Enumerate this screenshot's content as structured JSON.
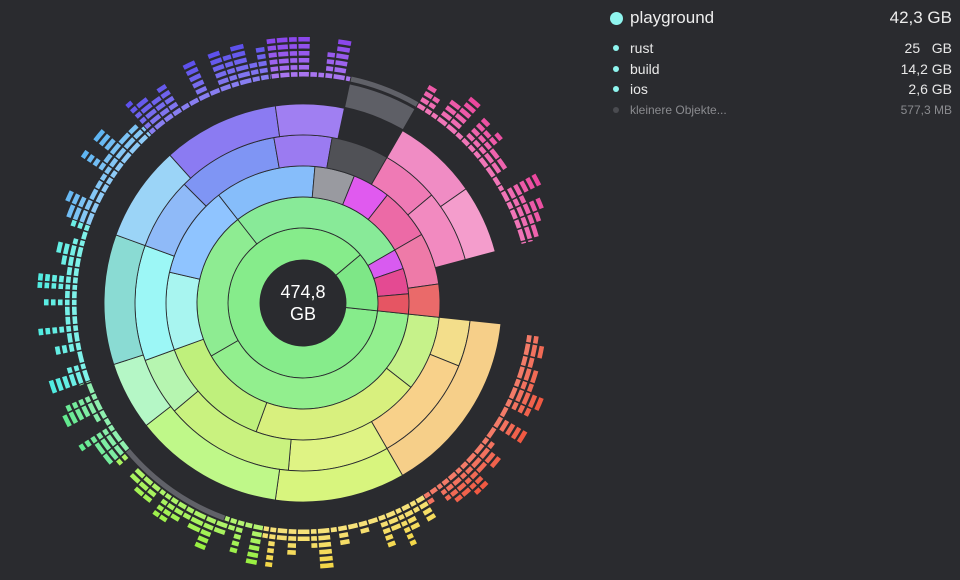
{
  "center": {
    "value": "474,8",
    "unit": "GB"
  },
  "legend": {
    "header": {
      "name": "playground",
      "size": "42,3 GB",
      "color": "#8ff5ef"
    },
    "items": [
      {
        "name": "rust",
        "size": "25   GB",
        "color": "#8ff5ef"
      },
      {
        "name": "build",
        "size": "14,2 GB",
        "color": "#8ff5ef"
      },
      {
        "name": "ios",
        "size": "2,6 GB",
        "color": "#8ff5ef"
      },
      {
        "name": "kleinere Objekte...",
        "size": "577,3 MB",
        "color": "#4a4b50",
        "muted": true
      }
    ]
  },
  "colors": {
    "background": "#2a2b2f",
    "center_disc": "#2a2b2f",
    "separator": "#2a2b2f",
    "small_objects": "#606168"
  }
}
